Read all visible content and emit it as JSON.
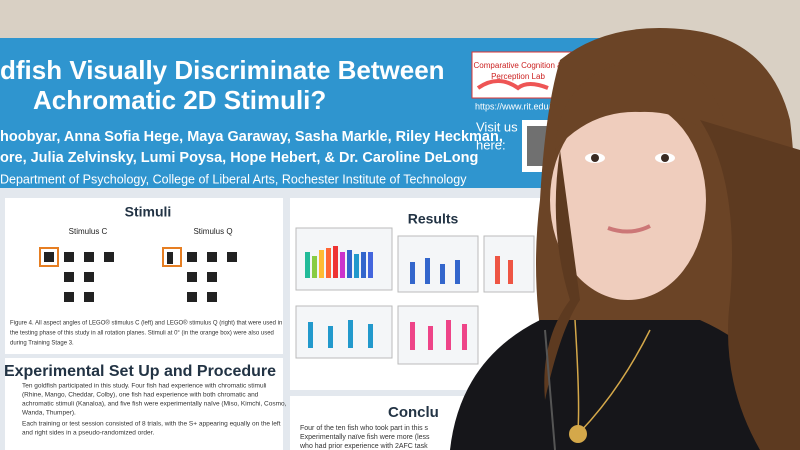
{
  "poster": {
    "title_lines": [
      "dfish Visually Discriminate Between",
      "Achromatic 2D Stimuli?"
    ],
    "author_lines": [
      "hoobyar, Anna Sofia Hege, Maya Garaway, Sasha Markle, Riley Heckman,",
      "ore, Julia Zelvinsky, Lumi Poysa, Hope Hebert, & Dr. Caroline DeLong"
    ],
    "department": "Department of Psychology, College of Liberal Arts, Rochester Institute of Technology",
    "visit": [
      "Visit us",
      "here:"
    ],
    "lab_name": [
      "Comparative Cognition &",
      "Perception Lab"
    ],
    "url": "https://www.rit.edu/d",
    "stimuli": {
      "heading": "Stimuli",
      "labels": [
        "Stimulus C",
        "Stimulus Q"
      ],
      "caption": [
        "Figure 4. All aspect angles of LEGO® stimulus C (left) and LEGO® stimulus Q (right) that were used in",
        "the testing phase of this study in all rotation planes. Stimuli at 0° (in the orange box) were also used",
        "during Training Stage 3."
      ]
    },
    "results": {
      "heading": "Results"
    },
    "procedure": {
      "heading": "Experimental Set Up and Procedure",
      "bullets": [
        "Ten goldfish participated in this study. Four fish had experience with chromatic stimuli",
        "(Rhine, Mango, Cheddar, Colby), one fish had experience with both chromatic and",
        "achromatic stimuli (Kanaloa), and five fish were experimentally naïve (Miso, Kimchi, Cosmo,",
        "Wanda, Thumper).",
        "Each training or test session consisted of 8 trials, with the S+ appearing equally on the left",
        "and right sides in a pseudo-randomized order."
      ]
    },
    "conclusion": {
      "heading": "Conclu",
      "lines": [
        "Four of the ten fish who took part in this s",
        "Experimentally naïve fish were more (less",
        "who had prior experience with 2AFC task"
      ]
    }
  }
}
